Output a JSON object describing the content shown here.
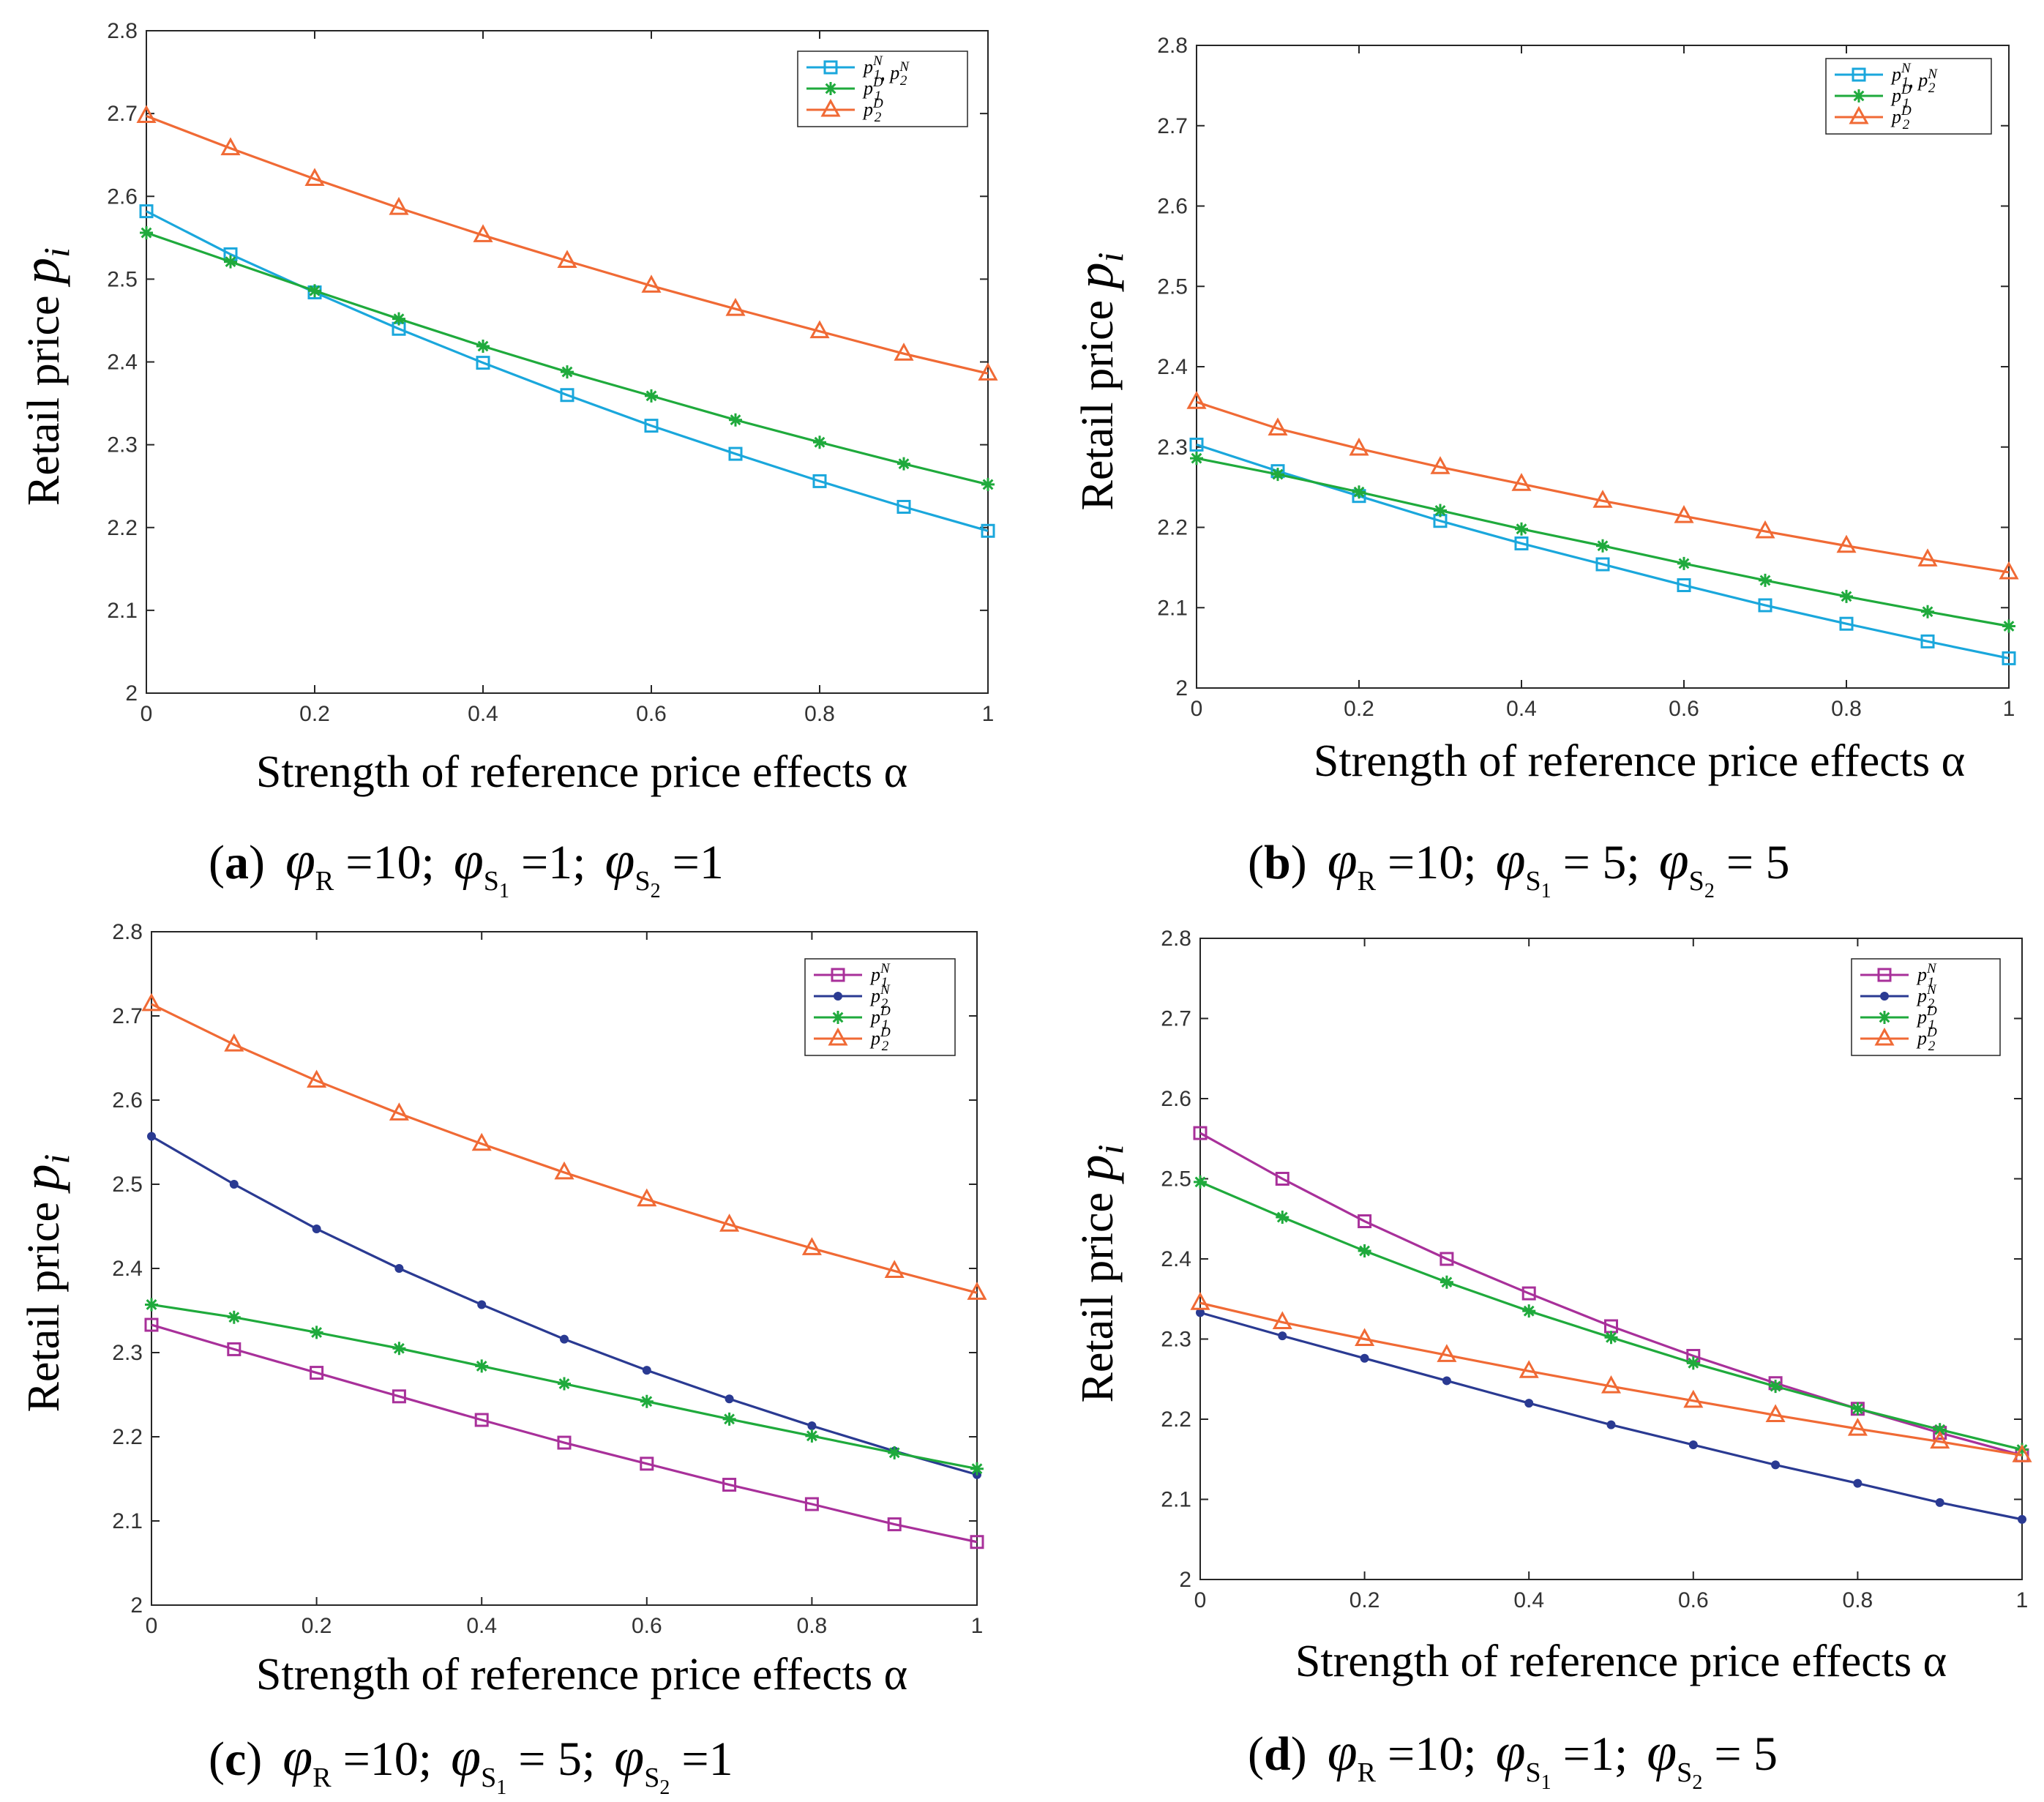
{
  "figure": {
    "subplots": [
      {
        "caption_letter": "(a)",
        "caption_params": "φR = 10; φS1 = 1; φS2 = 1",
        "caption_parts": [
          {
            "sym": "φ",
            "sub": "R",
            "sub2": "",
            "val": "=10;"
          },
          {
            "sym": "φ",
            "sub": "S",
            "sub2": "1",
            "val": "=1;"
          },
          {
            "sym": "φ",
            "sub": "S",
            "sub2": "2",
            "val": "=1"
          }
        ]
      },
      {
        "caption_letter": "(b)",
        "caption_params": "φR = 10; φS1 = 5; φS2 = 5",
        "caption_parts": [
          {
            "sym": "φ",
            "sub": "R",
            "sub2": "",
            "val": "=10;"
          },
          {
            "sym": "φ",
            "sub": "S",
            "sub2": "1",
            "val": "= 5;"
          },
          {
            "sym": "φ",
            "sub": "S",
            "sub2": "2",
            "val": "= 5"
          }
        ]
      },
      {
        "caption_letter": "(c)",
        "caption_params": "φR = 10; φS1 = 5; φS2 = 1",
        "caption_parts": [
          {
            "sym": "φ",
            "sub": "R",
            "sub2": "",
            "val": "=10;"
          },
          {
            "sym": "φ",
            "sub": "S",
            "sub2": "1",
            "val": "= 5;"
          },
          {
            "sym": "φ",
            "sub": "S",
            "sub2": "2",
            "val": "=1"
          }
        ]
      },
      {
        "caption_letter": "(d)",
        "caption_params": "φR = 10; φS1 = 1; φS2 = 5",
        "caption_parts": [
          {
            "sym": "φ",
            "sub": "R",
            "sub2": "",
            "val": "=10;"
          },
          {
            "sym": "φ",
            "sub": "S",
            "sub2": "1",
            "val": "=1;"
          },
          {
            "sym": "φ",
            "sub": "S",
            "sub2": "2",
            "val": "= 5"
          }
        ]
      }
    ]
  },
  "chart_data": [
    {
      "type": "line",
      "title": "",
      "xlabel": "Strength of reference price effects α",
      "ylabel": "Retail price p_i",
      "xlim": [
        0,
        1
      ],
      "ylim": [
        2,
        2.8
      ],
      "xticks": [
        "0",
        "0.2",
        "0.4",
        "0.6",
        "0.8",
        "1"
      ],
      "yticks": [
        "2",
        "2.1",
        "2.2",
        "2.3",
        "2.4",
        "2.5",
        "2.6",
        "2.7",
        "2.8"
      ],
      "grid": false,
      "legend_position": "top-right",
      "x": [
        0,
        0.1,
        0.2,
        0.3,
        0.4,
        0.5,
        0.6,
        0.7,
        0.8,
        0.9,
        1.0
      ],
      "series": [
        {
          "name": "p1N, p2N",
          "legend": [
            {
              "base": "p",
              "sub": "1",
              "sup": "N"
            },
            {
              "base": ", p",
              "sub": "2",
              "sup": "N"
            }
          ],
          "color": "#1aa7dc",
          "marker": "square",
          "values": [
            2.582,
            2.53,
            2.484,
            2.44,
            2.399,
            2.36,
            2.323,
            2.289,
            2.256,
            2.225,
            2.196
          ]
        },
        {
          "name": "p1D",
          "legend": [
            {
              "base": "p",
              "sub": "1",
              "sup": "D"
            }
          ],
          "color": "#1faa3c",
          "marker": "star",
          "values": [
            2.556,
            2.521,
            2.486,
            2.452,
            2.419,
            2.388,
            2.359,
            2.33,
            2.303,
            2.277,
            2.252
          ]
        },
        {
          "name": "p2D",
          "legend": [
            {
              "base": "p",
              "sub": "2",
              "sup": "D"
            }
          ],
          "color": "#f06a35",
          "marker": "triangle",
          "values": [
            2.697,
            2.658,
            2.621,
            2.586,
            2.553,
            2.522,
            2.492,
            2.464,
            2.437,
            2.41,
            2.386
          ]
        }
      ]
    },
    {
      "type": "line",
      "title": "",
      "xlabel": "Strength of reference price effects α",
      "ylabel": "Retail price p_i",
      "xlim": [
        0,
        1
      ],
      "ylim": [
        2,
        2.8
      ],
      "xticks": [
        "0",
        "0.2",
        "0.4",
        "0.6",
        "0.8",
        "1"
      ],
      "yticks": [
        "2",
        "2.1",
        "2.2",
        "2.3",
        "2.4",
        "2.5",
        "2.6",
        "2.7",
        "2.8"
      ],
      "grid": false,
      "legend_position": "top-right",
      "x": [
        0,
        0.1,
        0.2,
        0.3,
        0.4,
        0.5,
        0.6,
        0.7,
        0.8,
        0.9,
        1.0
      ],
      "series": [
        {
          "name": "p1N, p2N",
          "legend": [
            {
              "base": "p",
              "sub": "1",
              "sup": "N"
            },
            {
              "base": ", p",
              "sub": "2",
              "sup": "N"
            }
          ],
          "color": "#1aa7dc",
          "marker": "square",
          "values": [
            2.303,
            2.27,
            2.239,
            2.208,
            2.18,
            2.154,
            2.128,
            2.103,
            2.08,
            2.058,
            2.037
          ]
        },
        {
          "name": "p1D",
          "legend": [
            {
              "base": "p",
              "sub": "1",
              "sup": "D"
            }
          ],
          "color": "#1faa3c",
          "marker": "star",
          "values": [
            2.286,
            2.266,
            2.244,
            2.221,
            2.198,
            2.177,
            2.155,
            2.134,
            2.114,
            2.095,
            2.077
          ]
        },
        {
          "name": "p2D",
          "legend": [
            {
              "base": "p",
              "sub": "2",
              "sup": "D"
            }
          ],
          "color": "#f06a35",
          "marker": "triangle",
          "values": [
            2.356,
            2.323,
            2.298,
            2.275,
            2.254,
            2.233,
            2.214,
            2.195,
            2.177,
            2.16,
            2.144
          ]
        }
      ]
    },
    {
      "type": "line",
      "title": "",
      "xlabel": "Strength of reference price effects α",
      "ylabel": "Retail price p_i",
      "xlim": [
        0,
        1
      ],
      "ylim": [
        2,
        2.8
      ],
      "xticks": [
        "0",
        "0.2",
        "0.4",
        "0.6",
        "0.8",
        "1"
      ],
      "yticks": [
        "2",
        "2.1",
        "2.2",
        "2.3",
        "2.4",
        "2.5",
        "2.6",
        "2.7",
        "2.8"
      ],
      "grid": false,
      "legend_position": "top-right",
      "x": [
        0,
        0.1,
        0.2,
        0.3,
        0.4,
        0.5,
        0.6,
        0.7,
        0.8,
        0.9,
        1.0
      ],
      "series": [
        {
          "name": "p1N",
          "legend": [
            {
              "base": "p",
              "sub": "1",
              "sup": "N"
            }
          ],
          "color": "#a8309a",
          "marker": "square",
          "values": [
            2.333,
            2.304,
            2.276,
            2.248,
            2.22,
            2.193,
            2.168,
            2.143,
            2.12,
            2.096,
            2.075
          ]
        },
        {
          "name": "p2N",
          "legend": [
            {
              "base": "p",
              "sub": "2",
              "sup": "N"
            }
          ],
          "color": "#2a3a92",
          "marker": "dot",
          "values": [
            2.557,
            2.5,
            2.447,
            2.4,
            2.357,
            2.316,
            2.279,
            2.245,
            2.213,
            2.183,
            2.155
          ]
        },
        {
          "name": "p1D",
          "legend": [
            {
              "base": "p",
              "sub": "1",
              "sup": "D"
            }
          ],
          "color": "#1faa3c",
          "marker": "star",
          "values": [
            2.357,
            2.342,
            2.324,
            2.305,
            2.284,
            2.263,
            2.242,
            2.221,
            2.201,
            2.181,
            2.162
          ]
        },
        {
          "name": "p2D",
          "legend": [
            {
              "base": "p",
              "sub": "2",
              "sup": "D"
            }
          ],
          "color": "#f06a35",
          "marker": "triangle",
          "values": [
            2.714,
            2.666,
            2.623,
            2.584,
            2.548,
            2.514,
            2.482,
            2.452,
            2.424,
            2.397,
            2.371
          ]
        }
      ]
    },
    {
      "type": "line",
      "title": "",
      "xlabel": "Strength of reference price effects α",
      "ylabel": "Retail price p_i",
      "xlim": [
        0,
        1
      ],
      "ylim": [
        2,
        2.8
      ],
      "xticks": [
        "0",
        "0.2",
        "0.4",
        "0.6",
        "0.8",
        "1"
      ],
      "yticks": [
        "2",
        "2.1",
        "2.2",
        "2.3",
        "2.4",
        "2.5",
        "2.6",
        "2.7",
        "2.8"
      ],
      "grid": false,
      "legend_position": "top-right",
      "x": [
        0,
        0.1,
        0.2,
        0.3,
        0.4,
        0.5,
        0.6,
        0.7,
        0.8,
        0.9,
        1.0
      ],
      "series": [
        {
          "name": "p1N",
          "legend": [
            {
              "base": "p",
              "sub": "1",
              "sup": "N"
            }
          ],
          "color": "#a8309a",
          "marker": "square",
          "values": [
            2.557,
            2.5,
            2.447,
            2.4,
            2.357,
            2.316,
            2.279,
            2.245,
            2.213,
            2.183,
            2.155
          ]
        },
        {
          "name": "p2N",
          "legend": [
            {
              "base": "p",
              "sub": "2",
              "sup": "N"
            }
          ],
          "color": "#2a3a92",
          "marker": "dot",
          "values": [
            2.333,
            2.304,
            2.276,
            2.248,
            2.22,
            2.193,
            2.168,
            2.143,
            2.12,
            2.096,
            2.075
          ]
        },
        {
          "name": "p1D",
          "legend": [
            {
              "base": "p",
              "sub": "1",
              "sup": "D"
            }
          ],
          "color": "#1faa3c",
          "marker": "star",
          "values": [
            2.496,
            2.452,
            2.41,
            2.371,
            2.335,
            2.302,
            2.27,
            2.241,
            2.213,
            2.187,
            2.162
          ]
        },
        {
          "name": "p2D",
          "legend": [
            {
              "base": "p",
              "sub": "2",
              "sup": "D"
            }
          ],
          "color": "#f06a35",
          "marker": "triangle",
          "values": [
            2.345,
            2.321,
            2.3,
            2.28,
            2.26,
            2.241,
            2.223,
            2.205,
            2.188,
            2.172,
            2.155
          ]
        }
      ]
    }
  ]
}
